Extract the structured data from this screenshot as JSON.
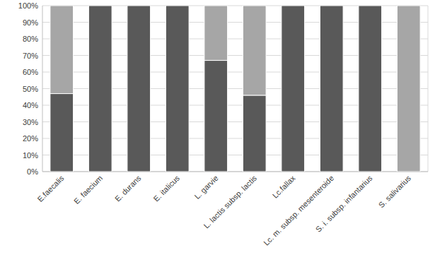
{
  "chart_data": {
    "type": "bar",
    "stacked": true,
    "grid": true,
    "categories": [
      "E.faecalis",
      "E. faecium",
      "E. durans",
      "E. italicus",
      "L. garvie",
      "L. lactis subsp. lactis",
      "Lc.fallax",
      "Lc. m. subsp. mesenteroide",
      "S. i. subsp. infantarius",
      "S. salivarius"
    ],
    "series": [
      {
        "color": "#595959",
        "values": [
          47,
          100,
          100,
          100,
          67,
          46,
          100,
          100,
          100,
          0
        ]
      },
      {
        "color": "#a6a6a6",
        "values": [
          53,
          0,
          0,
          0,
          33,
          54,
          0,
          0,
          0,
          100
        ]
      }
    ],
    "ylim": [
      0,
      100
    ],
    "yticks": [
      {
        "value": 0,
        "label": "0%"
      },
      {
        "value": 10,
        "label": "10%"
      },
      {
        "value": 20,
        "label": "20%"
      },
      {
        "value": 30,
        "label": "30%"
      },
      {
        "value": 40,
        "label": "40%"
      },
      {
        "value": 50,
        "label": "50%"
      },
      {
        "value": 60,
        "label": "60%"
      },
      {
        "value": 70,
        "label": "70%"
      },
      {
        "value": 80,
        "label": "80%"
      },
      {
        "value": 90,
        "label": "90%"
      },
      {
        "value": 100,
        "label": "100%"
      }
    ]
  }
}
